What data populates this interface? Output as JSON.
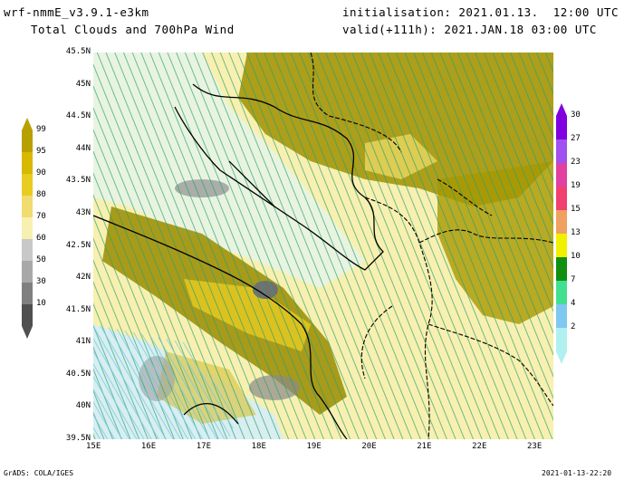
{
  "header": {
    "model": "wrf-nmmE_v3.9.1-e3km",
    "product": "Total Clouds and 700hPa Wind",
    "init": "initialisation: 2021.01.13.  12:00 UTC",
    "valid": "valid(+111h): 2021.JAN.18 03:00 UTC"
  },
  "axes": {
    "lat_labels": [
      "45.5N",
      "45N",
      "44.5N",
      "44N",
      "43.5N",
      "43N",
      "42.5N",
      "42N",
      "41.5N",
      "41N",
      "40.5N",
      "40N",
      "39.5N"
    ],
    "lon_labels": [
      "15E",
      "16E",
      "17E",
      "18E",
      "19E",
      "20E",
      "21E",
      "22E",
      "23E"
    ]
  },
  "cloud_scale": {
    "labels": [
      "99",
      "95",
      "90",
      "80",
      "70",
      "60",
      "50",
      "30",
      "10"
    ],
    "colors": [
      "#b8a000",
      "#d8b800",
      "#e8cc20",
      "#f0dc70",
      "#f8f0b0",
      "#c8c8c8",
      "#a8a8a8",
      "#808080",
      "#505050"
    ]
  },
  "wind_scale": {
    "labels": [
      "30",
      "27",
      "23",
      "19",
      "15",
      "13",
      "10",
      "7",
      "4",
      "2"
    ],
    "colors": [
      "#8000e0",
      "#a050f0",
      "#e040a0",
      "#f04070",
      "#f0a060",
      "#f0f000",
      "#109010",
      "#40e090",
      "#80c8f0",
      "#b0f0f0"
    ]
  },
  "footer": {
    "left": "GrADS: COLA/IGES",
    "right": "2021-01-13-22:20"
  }
}
